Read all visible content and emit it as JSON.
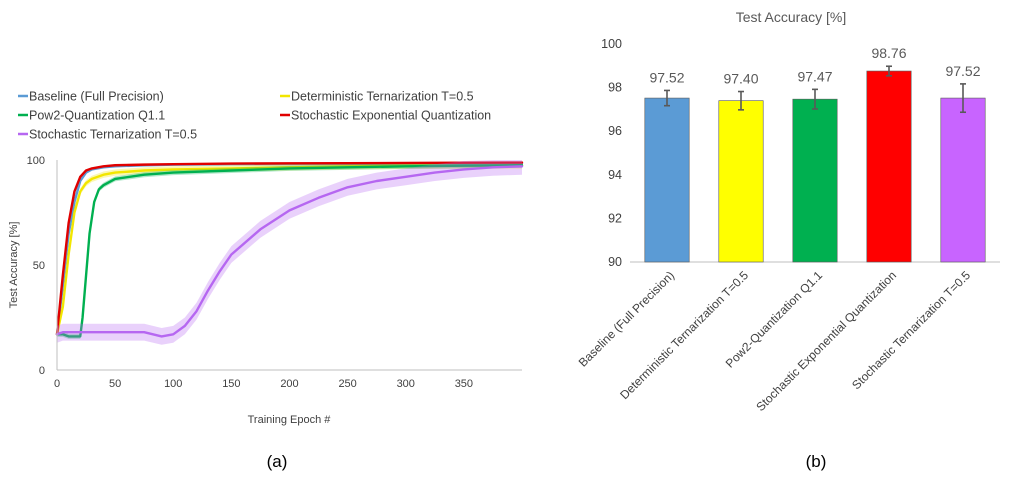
{
  "chart_data": [
    {
      "type": "line",
      "panel_label": "(a)",
      "xlabel": "Training Epoch #",
      "ylabel": "Test Accuracy [%]",
      "xlim": [
        0,
        400
      ],
      "ylim": [
        0,
        100
      ],
      "x_ticks": [
        0,
        50,
        100,
        150,
        200,
        250,
        300,
        350
      ],
      "y_ticks": [
        0,
        50,
        100
      ],
      "grid": false,
      "legend": "top",
      "series": [
        {
          "name": "Baseline (Full Precision)",
          "color": "#5b9bd5",
          "x": [
            0,
            5,
            10,
            15,
            20,
            25,
            30,
            40,
            50,
            75,
            100,
            150,
            200,
            250,
            300,
            350,
            400
          ],
          "y": [
            17,
            40,
            65,
            80,
            90,
            94,
            95.5,
            96.5,
            97,
            97.5,
            97.8,
            98,
            98,
            98.2,
            98.3,
            98.4,
            98.5
          ]
        },
        {
          "name": "Deterministic Ternarization T=0.5",
          "color": "#f2e600",
          "x": [
            0,
            5,
            10,
            15,
            20,
            25,
            30,
            40,
            50,
            75,
            100,
            150,
            200,
            250,
            300,
            350,
            400
          ],
          "y": [
            17,
            30,
            55,
            75,
            85,
            89,
            91,
            93,
            94,
            95,
            95.5,
            96,
            96.5,
            97,
            97.2,
            97.3,
            97.4
          ]
        },
        {
          "name": "Pow2-Quantization Q1.1",
          "color": "#00b050",
          "x": [
            0,
            5,
            10,
            15,
            20,
            22,
            25,
            28,
            32,
            36,
            40,
            50,
            75,
            100,
            150,
            200,
            250,
            300,
            350,
            400
          ],
          "y": [
            17,
            17,
            16,
            16,
            16,
            25,
            45,
            65,
            80,
            86,
            88,
            91,
            93,
            94,
            95,
            96,
            96.5,
            97,
            97.3,
            97.5
          ]
        },
        {
          "name": "Stochastic Exponential Quantization",
          "color": "#e00000",
          "x": [
            0,
            5,
            10,
            15,
            20,
            25,
            30,
            40,
            50,
            75,
            100,
            150,
            200,
            250,
            300,
            350,
            400
          ],
          "y": [
            17,
            45,
            70,
            85,
            92,
            95,
            96,
            97,
            97.5,
            97.8,
            98,
            98.3,
            98.4,
            98.5,
            98.6,
            98.7,
            98.8
          ]
        },
        {
          "name": "Stochastic Ternarization T=0.5",
          "color": "#b667f1",
          "x": [
            0,
            5,
            20,
            40,
            60,
            75,
            90,
            100,
            110,
            120,
            130,
            140,
            150,
            175,
            200,
            225,
            250,
            275,
            300,
            325,
            350,
            375,
            400
          ],
          "y": [
            17,
            18,
            18,
            18,
            18,
            18,
            16,
            17,
            21,
            28,
            38,
            47,
            55,
            67,
            76,
            82,
            87,
            90,
            92,
            94,
            95.5,
            96.5,
            97
          ]
        }
      ]
    },
    {
      "type": "bar",
      "panel_label": "(b)",
      "title": "Test Accuracy [%]",
      "categories": [
        "Baseline (Full Precision)",
        "Deterministic Ternarization T=0.5",
        "Pow2-Quantization Q1.1",
        "Stochastic Exponential Quantization",
        "Stochastic Ternarization T=0.5"
      ],
      "values": [
        97.52,
        97.4,
        97.47,
        98.76,
        97.52
      ],
      "value_labels": [
        "97.52",
        "97.40",
        "97.47",
        "98.76",
        "97.52"
      ],
      "error": [
        0.35,
        0.42,
        0.45,
        0.22,
        0.65
      ],
      "colors": [
        "#5b9bd5",
        "#ffff00",
        "#00b050",
        "#ff0000",
        "#c864ff"
      ],
      "ylim": [
        90,
        100
      ],
      "y_ticks": [
        90,
        92,
        94,
        96,
        98,
        100
      ],
      "grid": false
    }
  ]
}
